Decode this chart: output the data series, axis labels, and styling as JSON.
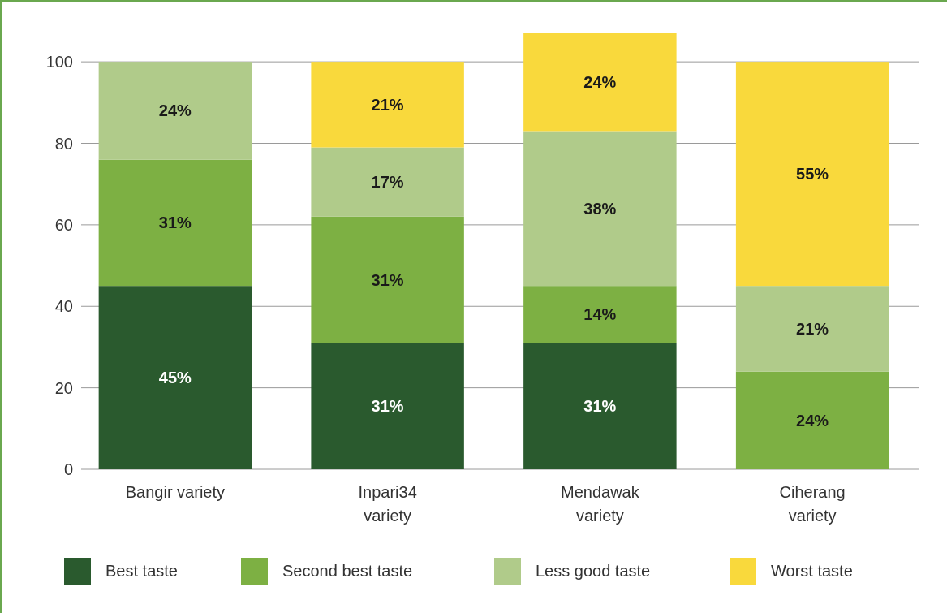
{
  "chart_data": {
    "type": "bar",
    "stacked": true,
    "categories": [
      "Bangir variety",
      "Inpari34 variety",
      "Mendawak variety",
      "Ciherang variety"
    ],
    "series": [
      {
        "name": "Best taste",
        "color": "#2a5a2e",
        "values": [
          45,
          31,
          31,
          null
        ],
        "value_labels": [
          "45%",
          "31%",
          "31%",
          null
        ]
      },
      {
        "name": "Second best taste",
        "color": "#7db043",
        "values": [
          31,
          31,
          14,
          24
        ],
        "value_labels": [
          "31%",
          "31%",
          "14%",
          "24%"
        ]
      },
      {
        "name": "Less good taste",
        "color": "#b0cb8a",
        "values": [
          24,
          17,
          38,
          21
        ],
        "value_labels": [
          "24%",
          "17%",
          "38%",
          "21%"
        ]
      },
      {
        "name": "Worst taste",
        "color": "#f9d93c",
        "values": [
          null,
          21,
          24,
          55
        ],
        "value_labels": [
          null,
          "21%",
          "24%",
          "55%"
        ]
      }
    ],
    "ylim": [
      0,
      107
    ],
    "yticks": [
      0,
      20,
      40,
      60,
      80,
      100
    ],
    "grid": "y",
    "legend": "bottom"
  }
}
